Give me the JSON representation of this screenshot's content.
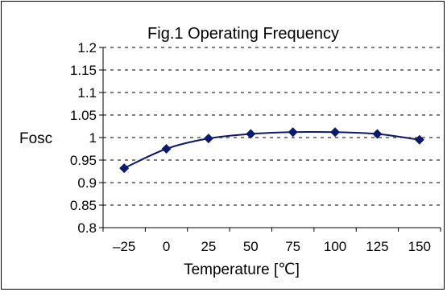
{
  "chart_data": {
    "type": "line",
    "title": "Fig.1 Operating Frequency",
    "xlabel": "Temperature [℃]",
    "ylabel": "Fosc",
    "x_categories": [
      "–25",
      "0",
      "25",
      "50",
      "75",
      "100",
      "125",
      "150"
    ],
    "x": [
      -25,
      0,
      25,
      50,
      75,
      100,
      125,
      150
    ],
    "y_ticks": [
      "1.2",
      "1.15",
      "1.1",
      "1.05",
      "1",
      "0.95",
      "0.9",
      "0.85",
      "0.8"
    ],
    "ylim": [
      0.8,
      1.2
    ],
    "grid": "horizontal-dashed",
    "series": [
      {
        "values": [
          0.932,
          0.975,
          0.998,
          1.008,
          1.012,
          1.012,
          1.008,
          0.995
        ],
        "color": "#0b1a6b",
        "marker": "diamond"
      }
    ]
  }
}
